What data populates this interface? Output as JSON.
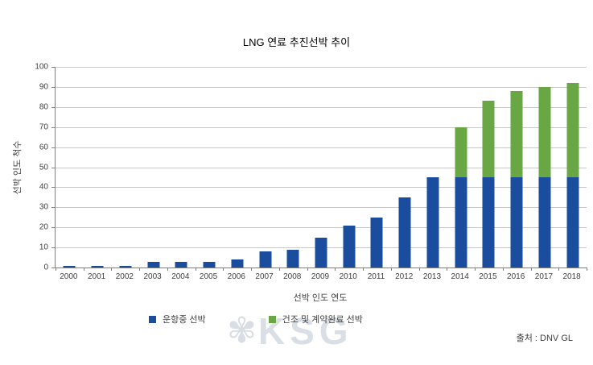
{
  "title": "LNG 연료 추진선박 추이",
  "chart_data": {
    "type": "bar",
    "stacked": true,
    "title": "LNG 연료 추진선박 추이",
    "xlabel": "선박 인도 연도",
    "ylabel": "선박 인도 척수",
    "ylim": [
      0,
      100
    ],
    "ytick_step": 10,
    "grid": true,
    "legend_position": "bottom",
    "categories": [
      "2000",
      "2001",
      "2002",
      "2003",
      "2004",
      "2005",
      "2006",
      "2007",
      "2008",
      "2009",
      "2010",
      "2011",
      "2012",
      "2013",
      "2014",
      "2015",
      "2016",
      "2017",
      "2018"
    ],
    "series": [
      {
        "name": "운항중 선박",
        "color": "#1B4D9E",
        "values": [
          1,
          1,
          1,
          3,
          3,
          3,
          4,
          8,
          9,
          15,
          21,
          25,
          35,
          45,
          45,
          45,
          45,
          45,
          45
        ]
      },
      {
        "name": "건조 및 계약완료 선박",
        "color": "#69A744",
        "values": [
          0,
          0,
          0,
          0,
          0,
          0,
          0,
          0,
          0,
          0,
          0,
          0,
          0,
          0,
          25,
          38,
          43,
          45,
          47
        ]
      }
    ]
  },
  "watermark": {
    "flower_icon": "✾",
    "text": "KSG"
  },
  "source": "출처 : DNV GL",
  "colors": {
    "bar_blue": "#1B4D9E",
    "bar_green": "#69A744",
    "gridline": "#C9C9C9",
    "axis": "#808080",
    "text": "#3F3F3F"
  }
}
